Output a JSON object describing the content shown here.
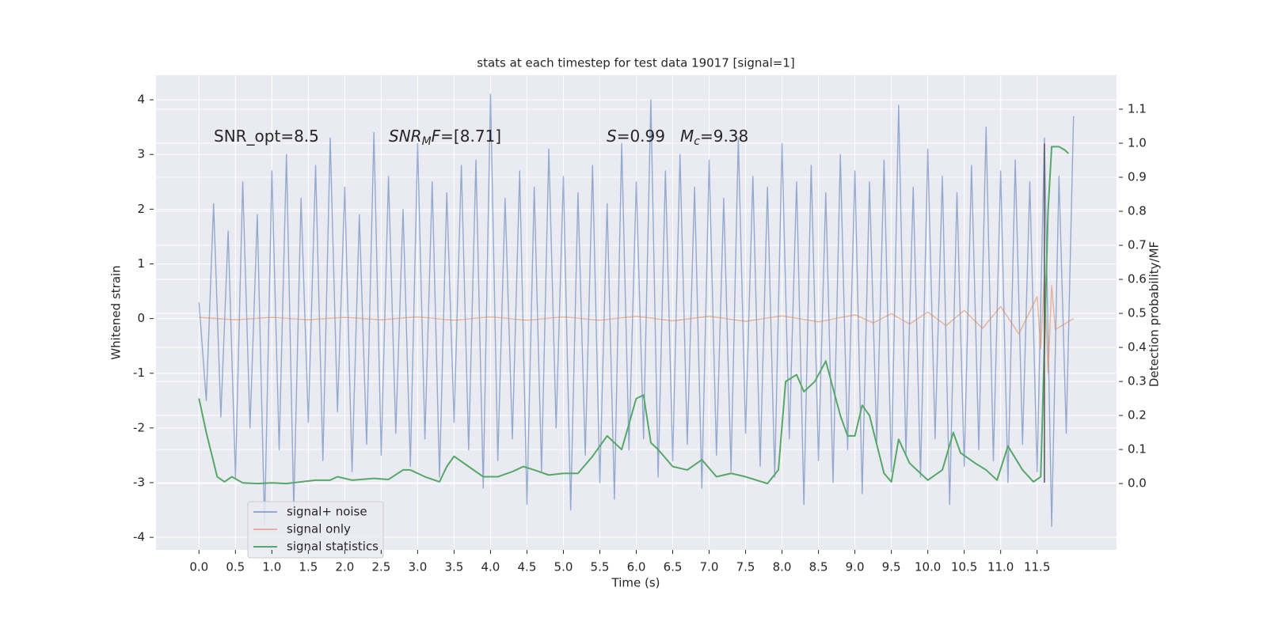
{
  "chart_data": {
    "type": "line",
    "title": "stats at each timestep for test data 19017 [signal=1]",
    "xlabel": "Time (s)",
    "ylabel": "Whitened strain",
    "y2label": "Detection probability/MF",
    "xlim": [
      -0.59,
      12.59
    ],
    "ylim": [
      -4.23,
      4.45
    ],
    "y2lim": [
      -0.195,
      1.2
    ],
    "xticks": [
      {
        "value": 0,
        "label": "0.0"
      },
      0.5,
      {
        "value": 1,
        "label": "1.0"
      },
      1.5,
      {
        "value": 2,
        "label": "2.0"
      },
      2.5,
      {
        "value": 3,
        "label": "3.0"
      },
      3.5,
      {
        "value": 4,
        "label": "4.0"
      },
      4.5,
      {
        "value": 5,
        "label": "5.0"
      },
      5.5,
      {
        "value": 6,
        "label": "6.0"
      },
      6.5,
      {
        "value": 7,
        "label": "7.0"
      },
      7.5,
      {
        "value": 8,
        "label": "8.0"
      },
      8.5,
      {
        "value": 9,
        "label": "9.0"
      },
      9.5,
      {
        "value": 10,
        "label": "10.0"
      },
      10.5,
      {
        "value": 11,
        "label": "11.0"
      },
      11.5
    ],
    "yticks": [
      -4,
      -3,
      -2,
      -1,
      0,
      1,
      2,
      3,
      4
    ],
    "y2ticks": [
      {
        "value": 0,
        "label": "0.0"
      },
      0.1,
      0.2,
      0.3,
      0.4,
      0.5,
      0.6,
      0.7,
      0.8,
      0.9,
      {
        "value": 1,
        "label": "1.0"
      },
      1.1
    ],
    "grid": true,
    "legend": "lower left",
    "vline": {
      "x": 11.6,
      "y": [
        -3,
        3.2
      ],
      "color": "#555555"
    },
    "annotations": [
      {
        "parts": [
          {
            "text": "SNR_opt=8.5"
          }
        ]
      },
      {
        "parts": [
          {
            "text": "SNR",
            "style": "italic"
          },
          {
            "text": "M",
            "style": "sub"
          },
          {
            "text": "F",
            "style": "italic"
          },
          {
            "text": "=[8.71]"
          }
        ]
      },
      {
        "parts": [
          {
            "text": "S",
            "style": "italic"
          },
          {
            "text": "=0.99"
          }
        ]
      },
      {
        "parts": [
          {
            "text": "M",
            "style": "italic"
          },
          {
            "text": "c",
            "style": "sub"
          },
          {
            "text": "=9.38"
          }
        ]
      }
    ],
    "series": [
      {
        "name": "signal+ noise",
        "color": "#4c72b0",
        "x": [
          0,
          0.1,
          0.2,
          0.3,
          0.4,
          0.5,
          0.6,
          0.7,
          0.8,
          0.9,
          1.0,
          1.1,
          1.2,
          1.3,
          1.4,
          1.5,
          1.6,
          1.7,
          1.8,
          1.9,
          2.0,
          2.1,
          2.2,
          2.3,
          2.4,
          2.5,
          2.6,
          2.7,
          2.8,
          2.9,
          3.0,
          3.1,
          3.2,
          3.3,
          3.4,
          3.5,
          3.6,
          3.7,
          3.8,
          3.9,
          4.0,
          4.1,
          4.2,
          4.3,
          4.4,
          4.5,
          4.6,
          4.7,
          4.8,
          4.9,
          5.0,
          5.1,
          5.2,
          5.3,
          5.4,
          5.5,
          5.6,
          5.7,
          5.8,
          5.9,
          6.0,
          6.1,
          6.2,
          6.3,
          6.4,
          6.5,
          6.6,
          6.7,
          6.8,
          6.9,
          7.0,
          7.1,
          7.2,
          7.3,
          7.4,
          7.5,
          7.6,
          7.7,
          7.8,
          7.9,
          8.0,
          8.1,
          8.2,
          8.3,
          8.4,
          8.5,
          8.6,
          8.7,
          8.8,
          8.9,
          9.0,
          9.1,
          9.2,
          9.3,
          9.4,
          9.5,
          9.6,
          9.7,
          9.8,
          9.9,
          10.0,
          10.1,
          10.2,
          10.3,
          10.4,
          10.5,
          10.6,
          10.7,
          10.8,
          10.9,
          11.0,
          11.1,
          11.2,
          11.3,
          11.4,
          11.5,
          11.6,
          11.7,
          11.8,
          11.9,
          12.0
        ],
        "values": [
          0.3,
          -1.5,
          2.1,
          -1.8,
          1.6,
          -2.9,
          2.5,
          -2.0,
          1.9,
          -3.8,
          2.7,
          -2.4,
          3.0,
          -3.5,
          2.2,
          -1.9,
          2.8,
          -2.6,
          3.3,
          -1.7,
          2.4,
          -2.8,
          1.9,
          -2.3,
          3.4,
          -2.5,
          2.6,
          -2.1,
          2.0,
          -2.7,
          3.2,
          -2.2,
          2.5,
          -2.9,
          2.3,
          -1.9,
          2.8,
          -2.4,
          2.9,
          -3.1,
          4.1,
          -2.6,
          2.2,
          -2.2,
          2.7,
          -3.4,
          2.4,
          -2.8,
          3.1,
          -2.0,
          2.6,
          -3.5,
          2.3,
          -2.5,
          2.8,
          -3.0,
          2.1,
          -3.3,
          3.2,
          -2.4,
          2.5,
          -2.2,
          4.0,
          -2.9,
          2.7,
          -2.6,
          3.0,
          -2.3,
          2.4,
          -3.1,
          2.9,
          -2.5,
          2.2,
          -2.8,
          3.3,
          -2.1,
          2.6,
          -2.7,
          2.4,
          -2.9,
          3.2,
          -2.2,
          2.5,
          -3.4,
          2.8,
          -2.6,
          2.3,
          -3.0,
          3.0,
          -2.4,
          2.7,
          -3.2,
          2.5,
          -2.3,
          2.9,
          -2.8,
          3.9,
          -2.5,
          2.4,
          -2.9,
          3.1,
          -2.2,
          2.6,
          -3.4,
          2.3,
          -2.7,
          2.8,
          -2.4,
          3.5,
          -2.6,
          2.7,
          -3.0,
          2.9,
          -2.3,
          2.5,
          -2.8,
          3.3,
          -3.8,
          2.6,
          -2.1,
          3.7
        ]
      },
      {
        "name": "signal only",
        "color": "#dd8452",
        "x": [
          0,
          0.5,
          1,
          1.5,
          2,
          2.5,
          3,
          3.5,
          4,
          4.5,
          5,
          5.5,
          6,
          6.5,
          7,
          7.5,
          8,
          8.5,
          9,
          9.25,
          9.5,
          9.75,
          10,
          10.25,
          10.5,
          10.75,
          11,
          11.25,
          11.5,
          11.55,
          11.6,
          11.65,
          11.7,
          11.75,
          12.0
        ],
        "values": [
          0.02,
          -0.02,
          0.02,
          -0.02,
          0.02,
          -0.02,
          0.03,
          -0.03,
          0.03,
          -0.03,
          0.03,
          -0.03,
          0.04,
          -0.04,
          0.04,
          -0.05,
          0.05,
          -0.06,
          0.07,
          -0.08,
          0.09,
          -0.1,
          0.12,
          -0.13,
          0.15,
          -0.18,
          0.22,
          -0.28,
          0.4,
          -0.55,
          0.8,
          -1.0,
          0.6,
          -0.2,
          0.0
        ]
      },
      {
        "name": "signal statistics",
        "color": "#55a868",
        "axis": "y2",
        "x": [
          0,
          0.1,
          0.25,
          0.35,
          0.45,
          0.6,
          0.8,
          1.0,
          1.2,
          1.4,
          1.6,
          1.8,
          1.9,
          2.1,
          2.4,
          2.6,
          2.8,
          2.9,
          3.1,
          3.3,
          3.4,
          3.5,
          3.7,
          3.9,
          4.1,
          4.3,
          4.45,
          4.6,
          4.8,
          5.0,
          5.2,
          5.4,
          5.6,
          5.8,
          6.0,
          6.1,
          6.2,
          6.3,
          6.5,
          6.7,
          6.9,
          7.1,
          7.3,
          7.5,
          7.8,
          7.95,
          8.05,
          8.2,
          8.3,
          8.45,
          8.6,
          8.8,
          8.9,
          9.0,
          9.1,
          9.2,
          9.4,
          9.5,
          9.6,
          9.75,
          9.9,
          10.0,
          10.2,
          10.35,
          10.45,
          10.65,
          10.8,
          10.95,
          11.1,
          11.3,
          11.45,
          11.55,
          11.6,
          11.65,
          11.7,
          11.8,
          11.88,
          11.93
        ],
        "values": [
          0.25,
          0.15,
          0.02,
          0.005,
          0.02,
          0.002,
          0.0,
          0.002,
          0.0,
          0.005,
          0.01,
          0.01,
          0.02,
          0.01,
          0.015,
          0.012,
          0.04,
          0.04,
          0.02,
          0.005,
          0.05,
          0.08,
          0.05,
          0.02,
          0.02,
          0.035,
          0.05,
          0.04,
          0.025,
          0.03,
          0.03,
          0.08,
          0.14,
          0.1,
          0.25,
          0.26,
          0.12,
          0.1,
          0.05,
          0.04,
          0.07,
          0.02,
          0.03,
          0.02,
          0.0,
          0.04,
          0.3,
          0.32,
          0.27,
          0.3,
          0.36,
          0.2,
          0.14,
          0.14,
          0.23,
          0.2,
          0.03,
          0.005,
          0.13,
          0.06,
          0.03,
          0.01,
          0.04,
          0.15,
          0.09,
          0.06,
          0.04,
          0.01,
          0.11,
          0.04,
          0.005,
          0.02,
          0.4,
          0.8,
          0.99,
          0.99,
          0.98,
          0.97
        ]
      }
    ]
  }
}
